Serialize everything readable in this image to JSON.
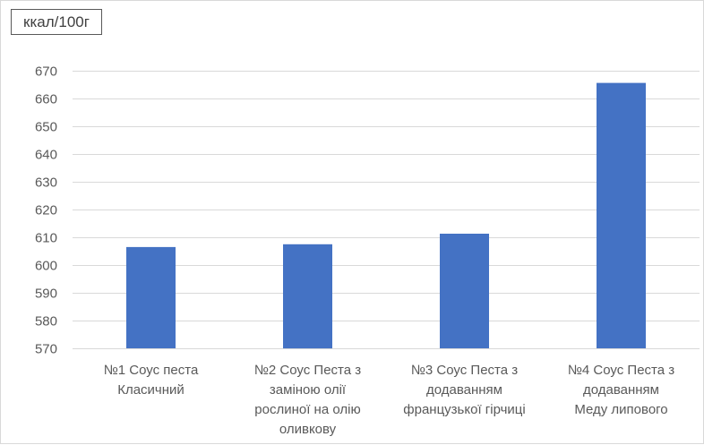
{
  "chart_data": {
    "type": "bar",
    "unit_label": "ккал/100г",
    "categories": [
      [
        "№1 Соус песта",
        "Класичний"
      ],
      [
        "№2 Соус Песта з",
        "заміною олії",
        "рослиної на олію",
        "оливкову"
      ],
      [
        "№3 Соус Песта з",
        "додаванням",
        "французької гірчиці"
      ],
      [
        "№4 Соус Песта з",
        "додаванням",
        "Меду липового"
      ]
    ],
    "values": [
      606.5,
      607.5,
      611.3,
      665.6
    ],
    "ylim": [
      570,
      670
    ],
    "yticks": [
      570,
      580,
      590,
      600,
      610,
      620,
      630,
      640,
      650,
      660,
      670
    ],
    "grid": true,
    "bar_color": "#4472c4",
    "grid_color": "#d9d9d9"
  }
}
